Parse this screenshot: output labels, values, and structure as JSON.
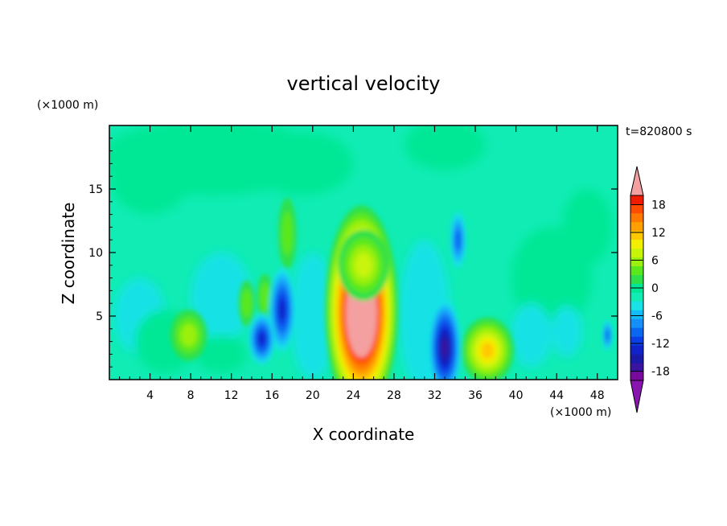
{
  "chart_data": {
    "type": "heatmap",
    "title": "vertical velocity",
    "xlabel": "X coordinate",
    "ylabel": "Z coordinate",
    "x_unit": "(×1000 m)",
    "y_unit": "(×1000 m)",
    "time_label": "t=820800 s",
    "xlim": [
      0,
      50
    ],
    "ylim": [
      0,
      20
    ],
    "x_ticks": [
      4,
      8,
      12,
      16,
      20,
      24,
      28,
      32,
      36,
      40,
      44,
      48
    ],
    "y_ticks": [
      5,
      10,
      15
    ],
    "colorbar": {
      "ticks": [
        18,
        12,
        6,
        0,
        -6,
        -12,
        -18
      ],
      "levels": [
        -20,
        -18,
        -16,
        -14,
        -12,
        -10,
        -8,
        -6,
        -4,
        -2,
        0,
        2,
        4,
        6,
        8,
        10,
        12,
        14,
        16,
        18,
        20
      ],
      "colors": [
        "#7a0a9c",
        "#3a14a0",
        "#1a1aa8",
        "#1022c8",
        "#0a40e6",
        "#0a68f0",
        "#1490f8",
        "#12bcf8",
        "#18e2e6",
        "#10ecb4",
        "#00e896",
        "#2ee04a",
        "#5ae81c",
        "#9af010",
        "#c8f408",
        "#f2f000",
        "#ffc800",
        "#ffa000",
        "#ff7800",
        "#ff4c00",
        "#f01c00"
      ],
      "over_color": "#f4a0a0",
      "under_color": "#8a14b0"
    },
    "features": [
      {
        "x": 24.8,
        "z": 5.5,
        "w": 30,
        "kind": "updraft"
      },
      {
        "x": 25.0,
        "z": 9.0,
        "w": 8,
        "kind": "updraft"
      },
      {
        "x": 37.2,
        "z": 2.3,
        "w": 12,
        "kind": "updraft"
      },
      {
        "x": 7.8,
        "z": 3.5,
        "w": 6,
        "kind": "updraft"
      },
      {
        "x": 13.5,
        "z": 6.0,
        "w": 5,
        "kind": "updraft"
      },
      {
        "x": 15.3,
        "z": 6.5,
        "w": 5,
        "kind": "updraft"
      },
      {
        "x": 17.5,
        "z": 11.5,
        "w": 4,
        "kind": "updraft"
      },
      {
        "x": 17.0,
        "z": 5.5,
        "w": -12,
        "kind": "downdraft"
      },
      {
        "x": 15.0,
        "z": 3.2,
        "w": -12,
        "kind": "downdraft"
      },
      {
        "x": 33.0,
        "z": 2.5,
        "w": -16,
        "kind": "downdraft"
      },
      {
        "x": 34.3,
        "z": 11.0,
        "w": -9,
        "kind": "downdraft"
      },
      {
        "x": 49.0,
        "z": 3.5,
        "w": -9,
        "kind": "downdraft"
      }
    ]
  }
}
